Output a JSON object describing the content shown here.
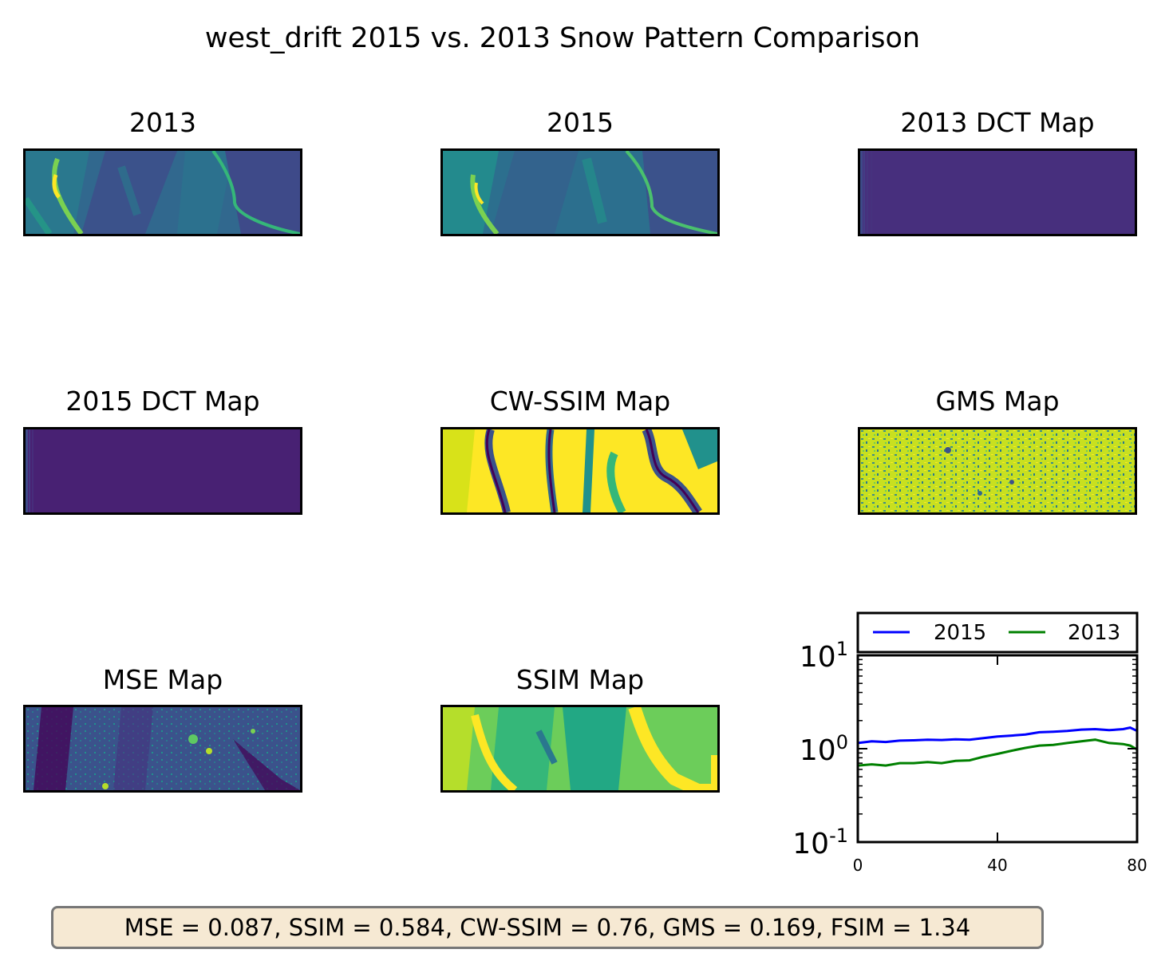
{
  "suptitle": "west_drift 2015 vs. 2013 Snow Pattern Comparison",
  "panels": {
    "p2013": "2013",
    "p2015": "2015",
    "dct2013": "2013 DCT Map",
    "dct2015": "2015 DCT Map",
    "cwssim": "CW-SSIM Map",
    "gms": "GMS Map",
    "mse": "MSE Map",
    "ssim": "SSIM Map"
  },
  "stats_text": "MSE = 0.087, SSIM = 0.584, CW-SSIM = 0.76, GMS = 0.169, FSIM = 1.34",
  "colors": {
    "series_2015": "#0000ff",
    "series_2013": "#008000",
    "viridis_dark": "#440154",
    "viridis_mid": "#21918c",
    "viridis_light": "#fde725",
    "stats_box_bg": "#f6e9d3"
  },
  "chart_data": {
    "type": "line",
    "y_scale": "log",
    "xlim": [
      0,
      80
    ],
    "ylim": [
      0.1,
      10
    ],
    "xticks": [
      "0",
      "40",
      "80"
    ],
    "yticks": [
      {
        "base": "10",
        "exp": "1"
      },
      {
        "base": "10",
        "exp": "0"
      },
      {
        "base": "10",
        "exp": "-1"
      }
    ],
    "legend_position": "above",
    "series": [
      {
        "name": "2015",
        "x": [
          0,
          4,
          8,
          12,
          16,
          20,
          24,
          28,
          32,
          36,
          40,
          44,
          48,
          52,
          56,
          60,
          64,
          68,
          72,
          76,
          78,
          80
        ],
        "values": [
          1.15,
          1.2,
          1.18,
          1.22,
          1.23,
          1.25,
          1.24,
          1.26,
          1.25,
          1.3,
          1.35,
          1.38,
          1.42,
          1.5,
          1.52,
          1.55,
          1.6,
          1.62,
          1.58,
          1.62,
          1.68,
          1.55
        ]
      },
      {
        "name": "2013",
        "x": [
          0,
          4,
          8,
          12,
          16,
          20,
          24,
          28,
          32,
          36,
          40,
          44,
          48,
          52,
          56,
          60,
          64,
          68,
          72,
          76,
          78,
          80
        ],
        "values": [
          0.66,
          0.68,
          0.66,
          0.7,
          0.7,
          0.72,
          0.7,
          0.74,
          0.75,
          0.82,
          0.88,
          0.95,
          1.02,
          1.08,
          1.1,
          1.15,
          1.2,
          1.25,
          1.15,
          1.12,
          1.08,
          0.98
        ]
      }
    ]
  }
}
